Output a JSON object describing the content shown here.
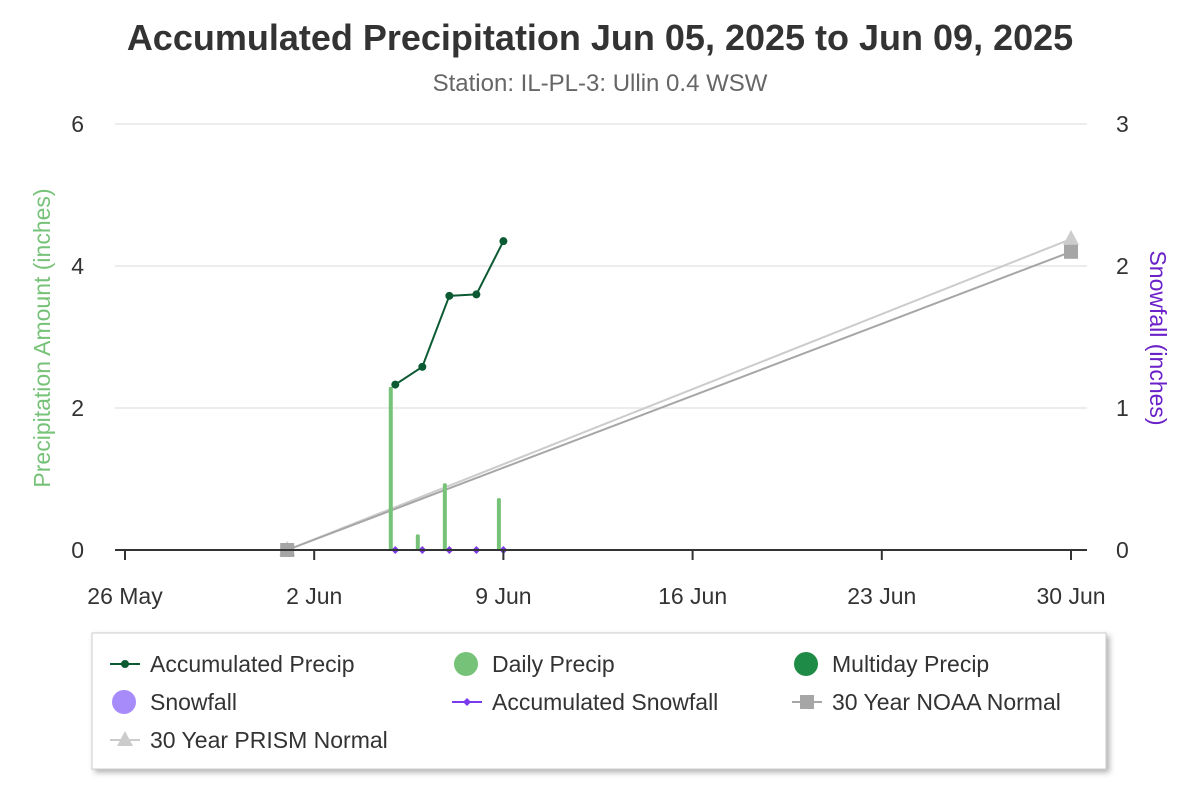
{
  "chart_data": {
    "type": "line",
    "title": "Accumulated Precipitation Jun 05, 2025 to Jun 09, 2025",
    "subtitle": "Station: IL-PL-3: Ullin 0.4 WSW",
    "y_left_label": "Precipitation Amount (inches)",
    "y_right_label": "Snowfall (inches)",
    "y_left_range": [
      0,
      6
    ],
    "y_right_range": [
      0,
      3
    ],
    "y_left_ticks": [
      "0",
      "2",
      "4",
      "6"
    ],
    "y_right_ticks": [
      "0",
      "1",
      "2",
      "3"
    ],
    "x_range": [
      "2025-05-26",
      "2025-06-30"
    ],
    "x_ticks": [
      {
        "label": "26 May",
        "date": "2025-05-26"
      },
      {
        "label": "2 Jun",
        "date": "2025-06-02"
      },
      {
        "label": "9 Jun",
        "date": "2025-06-09"
      },
      {
        "label": "16 Jun",
        "date": "2025-06-16"
      },
      {
        "label": "23 Jun",
        "date": "2025-06-23"
      },
      {
        "label": "30 Jun",
        "date": "2025-06-30"
      }
    ],
    "grid": true,
    "legend_position": "bottom",
    "series": [
      {
        "name": "Accumulated Precip",
        "kind": "line-marker",
        "axis": "left",
        "color": "#0b5a32",
        "points": [
          {
            "x": "2025-06-05",
            "y": 2.33
          },
          {
            "x": "2025-06-06",
            "y": 2.58
          },
          {
            "x": "2025-06-07",
            "y": 3.58
          },
          {
            "x": "2025-06-08",
            "y": 3.6
          },
          {
            "x": "2025-06-09",
            "y": 4.35
          }
        ]
      },
      {
        "name": "Daily Precip",
        "kind": "bar",
        "axis": "left",
        "color": "#76c278",
        "points": [
          {
            "x": "2025-06-05",
            "y": 2.3
          },
          {
            "x": "2025-06-06",
            "y": 0.22
          },
          {
            "x": "2025-06-07",
            "y": 0.94
          },
          {
            "x": "2025-06-09",
            "y": 0.73
          }
        ]
      },
      {
        "name": "Multiday Precip",
        "kind": "bar",
        "axis": "left",
        "color": "#1e8c46",
        "points": []
      },
      {
        "name": "Snowfall",
        "kind": "bar",
        "axis": "right",
        "color": "#a78bfa",
        "points": []
      },
      {
        "name": "Accumulated Snowfall",
        "kind": "line-marker",
        "axis": "right",
        "color": "#7c3aed",
        "points": [
          {
            "x": "2025-06-05",
            "y": 0
          },
          {
            "x": "2025-06-06",
            "y": 0
          },
          {
            "x": "2025-06-07",
            "y": 0
          },
          {
            "x": "2025-06-08",
            "y": 0
          },
          {
            "x": "2025-06-09",
            "y": 0
          }
        ]
      },
      {
        "name": "30 Year NOAA Normal",
        "kind": "line-square",
        "axis": "left",
        "color": "#a6a6a6",
        "points": [
          {
            "x": "2025-06-01",
            "y": 0
          },
          {
            "x": "2025-06-30",
            "y": 4.2
          }
        ]
      },
      {
        "name": "30 Year PRISM Normal",
        "kind": "line-triangle",
        "axis": "left",
        "color": "#cccccc",
        "points": [
          {
            "x": "2025-06-01",
            "y": 0
          },
          {
            "x": "2025-06-30",
            "y": 4.38
          }
        ]
      }
    ],
    "legend": [
      {
        "name": "Accumulated Precip",
        "symbol": "line-dot",
        "color": "#0b5a32"
      },
      {
        "name": "Daily Precip",
        "symbol": "circle",
        "color": "#76c278"
      },
      {
        "name": "Multiday Precip",
        "symbol": "circle",
        "color": "#1e8c46"
      },
      {
        "name": "Snowfall",
        "symbol": "circle",
        "color": "#a78bfa"
      },
      {
        "name": "Accumulated Snowfall",
        "symbol": "line-diamond",
        "color": "#7c3aed"
      },
      {
        "name": "30 Year NOAA Normal",
        "symbol": "line-square",
        "color": "#a6a6a6"
      },
      {
        "name": "30 Year PRISM Normal",
        "symbol": "line-triangle",
        "color": "#cccccc"
      }
    ],
    "colors": {
      "left_axis_title": "#76c278",
      "right_axis_title": "#6b21c8",
      "grid": "#e6e6e6",
      "axis": "#333333"
    }
  }
}
